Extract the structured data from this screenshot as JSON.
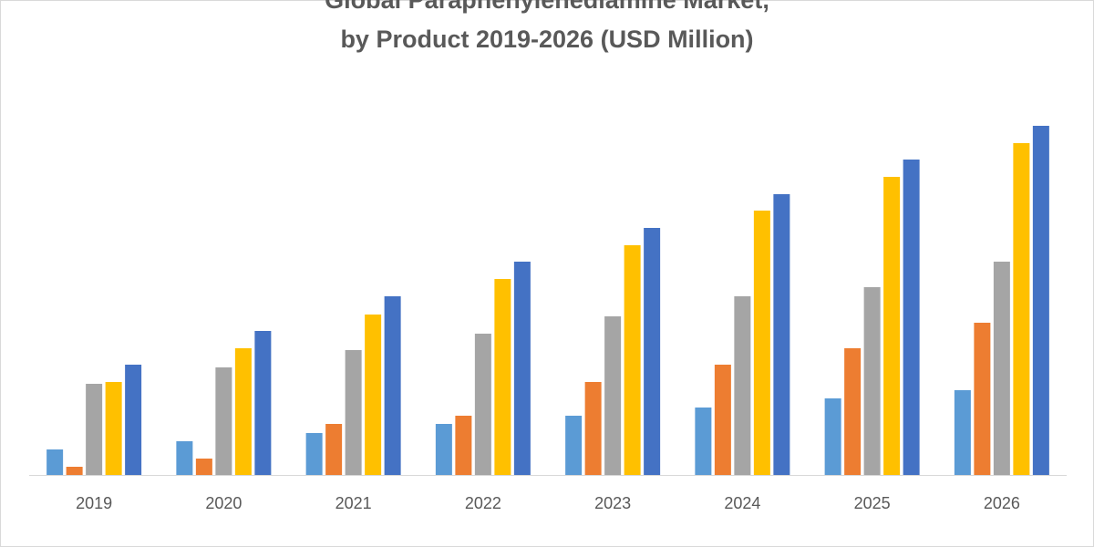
{
  "chart_data": {
    "type": "bar",
    "title": [
      "Global Paraphenylenediamine Market,",
      "by Product 2019-2026 (USD Million)"
    ],
    "categories": [
      "2019",
      "2020",
      "2021",
      "2022",
      "2023",
      "2024",
      "2025",
      "2026"
    ],
    "series": [
      {
        "color": "#5b9bd5",
        "values": [
          28,
          37,
          46,
          56,
          65,
          74,
          84,
          93
        ]
      },
      {
        "color": "#ed7d31",
        "values": [
          9,
          18,
          56,
          65,
          102,
          121,
          139,
          167
        ]
      },
      {
        "color": "#a5a5a5",
        "values": [
          100,
          118,
          137,
          155,
          174,
          196,
          206,
          234
        ]
      },
      {
        "color": "#ffc000",
        "values": [
          102,
          139,
          176,
          215,
          252,
          290,
          327,
          364
        ]
      },
      {
        "color": "#4472c4",
        "values": [
          121,
          158,
          196,
          234,
          271,
          308,
          346,
          383
        ]
      }
    ],
    "ylim": [
      0,
      400
    ]
  }
}
